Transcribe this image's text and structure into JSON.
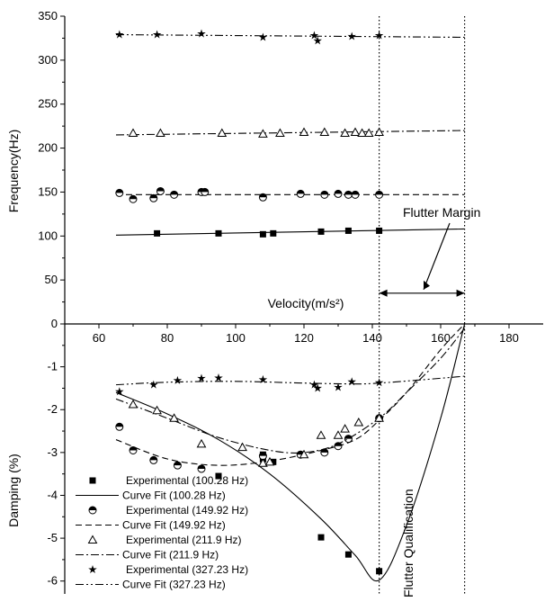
{
  "chart_data": [
    {
      "type": "scatter",
      "panel": "top",
      "ylabel": "Frequency(Hz)",
      "xlabel": "Velocity(m/s²)",
      "xlim": [
        50,
        190
      ],
      "ylim": [
        0,
        350
      ],
      "x_ticks": [
        60,
        80,
        100,
        120,
        140,
        160,
        180
      ],
      "y_ticks": [
        0,
        50,
        100,
        150,
        200,
        250,
        300,
        350
      ],
      "series": [
        {
          "mode": "100.28 Hz",
          "marker": "square",
          "line": "solid",
          "points": [
            [
              77,
              103
            ],
            [
              95,
              103
            ],
            [
              108,
              102
            ],
            [
              111,
              103
            ],
            [
              125,
              105
            ],
            [
              133,
              106
            ],
            [
              142,
              106
            ]
          ],
          "fit": [
            [
              65,
              101
            ],
            [
              167,
              108
            ]
          ]
        },
        {
          "mode": "149.92 Hz",
          "marker": "circle-half",
          "line": "dash",
          "points": [
            [
              66,
              149
            ],
            [
              70,
              142
            ],
            [
              76,
              143
            ],
            [
              78,
              151
            ],
            [
              82,
              147
            ],
            [
              90,
              150
            ],
            [
              91,
              150
            ],
            [
              108,
              144
            ],
            [
              119,
              148
            ],
            [
              126,
              147
            ],
            [
              130,
              148
            ],
            [
              133,
              147
            ],
            [
              135,
              147
            ],
            [
              142,
              147
            ]
          ],
          "fit": [
            [
              65,
              147
            ],
            [
              167,
              147
            ]
          ]
        },
        {
          "mode": "211.9 Hz",
          "marker": "triangle",
          "line": "dashdot",
          "points": [
            [
              70,
              217
            ],
            [
              78,
              217
            ],
            [
              96,
              217
            ],
            [
              108,
              216
            ],
            [
              113,
              217
            ],
            [
              120,
              218
            ],
            [
              126,
              218
            ],
            [
              132,
              217
            ],
            [
              135,
              218
            ],
            [
              137,
              217
            ],
            [
              139,
              217
            ],
            [
              142,
              218
            ]
          ],
          "fit": [
            [
              65,
              215
            ],
            [
              167,
              220
            ]
          ]
        },
        {
          "mode": "327.23 Hz",
          "marker": "star",
          "line": "dashdotdot",
          "points": [
            [
              66,
              329
            ],
            [
              77,
              329
            ],
            [
              90,
              330
            ],
            [
              108,
              326
            ],
            [
              123,
              328
            ],
            [
              124,
              322
            ],
            [
              134,
              327
            ],
            [
              142,
              328
            ]
          ],
          "fit": [
            [
              65,
              329
            ],
            [
              167,
              326
            ]
          ]
        }
      ],
      "vlines": [
        142,
        167
      ],
      "annotation": {
        "text": "Flutter Margin",
        "arrow_x": [
          142,
          167
        ],
        "arrow_y": 35
      }
    },
    {
      "type": "scatter",
      "panel": "bottom",
      "ylabel": "Damping (%)",
      "xlim": [
        50,
        190
      ],
      "ylim": [
        -6.3,
        0
      ],
      "y_ticks": [
        -1,
        -2,
        -3,
        -4,
        -5,
        -6
      ],
      "series": [
        {
          "mode": "100.28 Hz",
          "marker": "square",
          "line": "solid",
          "legend_points": "Experimental (100.28 Hz)",
          "legend_fit": "Curve Fit (100.28 Hz)",
          "points": [
            [
              108,
              -3.05
            ],
            [
              108,
              -3.15
            ],
            [
              111,
              -3.22
            ],
            [
              95,
              -3.55
            ],
            [
              125,
              -4.98
            ],
            [
              133,
              -5.38
            ],
            [
              142,
              -5.77
            ]
          ],
          "fit": [
            [
              65,
              -1.6
            ],
            [
              80,
              -2.1
            ],
            [
              95,
              -2.7
            ],
            [
              110,
              -3.5
            ],
            [
              125,
              -4.55
            ],
            [
              135,
              -5.4
            ],
            [
              142,
              -5.98
            ],
            [
              150,
              -4.7
            ],
            [
              160,
              -2.2
            ],
            [
              167,
              0
            ]
          ]
        },
        {
          "mode": "149.92 Hz",
          "marker": "circle-half",
          "line": "dash",
          "legend_points": "Experimental (149.92 Hz)",
          "legend_fit": "Curve Fit (149.92 Hz)",
          "points": [
            [
              66,
              -2.4
            ],
            [
              70,
              -2.95
            ],
            [
              76,
              -3.18
            ],
            [
              83,
              -3.3
            ],
            [
              90,
              -3.38
            ],
            [
              108,
              -3.08
            ],
            [
              119,
              -3.05
            ],
            [
              126,
              -3.0
            ],
            [
              130,
              -2.85
            ],
            [
              133,
              -2.68
            ],
            [
              142,
              -2.2
            ]
          ],
          "fit": [
            [
              65,
              -2.7
            ],
            [
              80,
              -3.15
            ],
            [
              95,
              -3.3
            ],
            [
              110,
              -3.2
            ],
            [
              125,
              -2.95
            ],
            [
              135,
              -2.7
            ],
            [
              142,
              -2.25
            ],
            [
              150,
              -1.6
            ],
            [
              160,
              -0.6
            ],
            [
              167,
              0
            ]
          ]
        },
        {
          "mode": "211.9 Hz",
          "marker": "triangle",
          "line": "dashdot",
          "legend_points": "Experimental (211.9 Hz)",
          "legend_fit": "Curve Fit (211.9 Hz)",
          "points": [
            [
              70,
              -1.88
            ],
            [
              77,
              -2.02
            ],
            [
              82,
              -2.2
            ],
            [
              90,
              -2.8
            ],
            [
              102,
              -2.88
            ],
            [
              108,
              -3.25
            ],
            [
              110,
              -3.22
            ],
            [
              120,
              -3.05
            ],
            [
              125,
              -2.6
            ],
            [
              130,
              -2.6
            ],
            [
              132,
              -2.45
            ],
            [
              136,
              -2.3
            ],
            [
              142,
              -2.2
            ]
          ],
          "fit": [
            [
              65,
              -1.75
            ],
            [
              80,
              -2.2
            ],
            [
              95,
              -2.65
            ],
            [
              110,
              -2.95
            ],
            [
              120,
              -3.0
            ],
            [
              130,
              -2.8
            ],
            [
              142,
              -2.2
            ],
            [
              150,
              -1.6
            ],
            [
              160,
              -0.8
            ],
            [
              167,
              -0.1
            ]
          ]
        },
        {
          "mode": "327.23 Hz",
          "marker": "star",
          "line": "dashdotdot",
          "legend_points": "Experimental (327.23 Hz)",
          "legend_fit": "Curve Fit (327.23 Hz)",
          "points": [
            [
              66,
              -1.58
            ],
            [
              76,
              -1.42
            ],
            [
              83,
              -1.32
            ],
            [
              90,
              -1.27
            ],
            [
              95,
              -1.26
            ],
            [
              108,
              -1.3
            ],
            [
              123,
              -1.42
            ],
            [
              124,
              -1.5
            ],
            [
              130,
              -1.48
            ],
            [
              134,
              -1.35
            ],
            [
              142,
              -1.37
            ]
          ],
          "fit": [
            [
              65,
              -1.42
            ],
            [
              80,
              -1.36
            ],
            [
              100,
              -1.34
            ],
            [
              120,
              -1.38
            ],
            [
              135,
              -1.4
            ],
            [
              142,
              -1.38
            ],
            [
              155,
              -1.3
            ],
            [
              167,
              -1.22
            ]
          ]
        }
      ],
      "vlines": [
        142,
        167
      ],
      "annotation": {
        "text": "Flutter Qualification"
      }
    }
  ]
}
